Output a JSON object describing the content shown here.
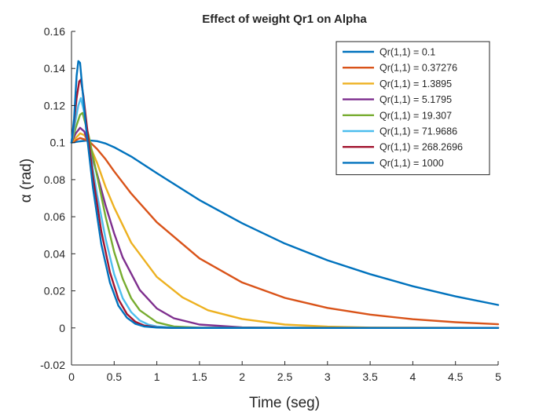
{
  "chart_data": {
    "type": "line",
    "title": "Effect of weight Qr1 on Alpha",
    "xlabel": "Time (seg)",
    "ylabel": "α (rad)",
    "xlim": [
      0,
      5
    ],
    "ylim": [
      -0.02,
      0.16
    ],
    "xticks": [
      0,
      0.5,
      1,
      1.5,
      2,
      2.5,
      3,
      3.5,
      4,
      4.5,
      5
    ],
    "xtick_labels": [
      "0",
      "0.5",
      "1",
      "1.5",
      "2",
      "2.5",
      "3",
      "3.5",
      "4",
      "4.5",
      "5"
    ],
    "yticks": [
      -0.02,
      0,
      0.02,
      0.04,
      0.06,
      0.08,
      0.1,
      0.12,
      0.14,
      0.16
    ],
    "ytick_labels": [
      "-0.02",
      "0",
      "0.02",
      "0.04",
      "0.06",
      "0.08",
      "0.1",
      "0.12",
      "0.14",
      "0.16"
    ],
    "grid": false,
    "legend_position": "top-right",
    "series": [
      {
        "name": "Qr(1,1) = 0.1",
        "color": "#0072BD",
        "x": [
          0,
          0.1,
          0.2,
          0.3,
          0.4,
          0.5,
          0.7,
          1.0,
          1.5,
          2.0,
          2.5,
          3.0,
          3.5,
          4.0,
          4.5,
          5.0
        ],
        "y": [
          0.1,
          0.1007,
          0.1012,
          0.1008,
          0.0995,
          0.0975,
          0.0925,
          0.0835,
          0.069,
          0.0565,
          0.0455,
          0.0365,
          0.029,
          0.0225,
          0.017,
          0.0124
        ]
      },
      {
        "name": "Qr(1,1) = 0.37276",
        "color": "#D95319",
        "x": [
          0,
          0.1,
          0.2,
          0.3,
          0.4,
          0.5,
          0.7,
          1.0,
          1.5,
          2.0,
          2.5,
          3.0,
          3.5,
          4.0,
          4.5,
          5.0
        ],
        "y": [
          0.1,
          0.1025,
          0.101,
          0.0965,
          0.091,
          0.0845,
          0.0725,
          0.057,
          0.0375,
          0.0245,
          0.0162,
          0.0108,
          0.0072,
          0.0047,
          0.0031,
          0.002
        ]
      },
      {
        "name": "Qr(1,1) = 1.3895",
        "color": "#EDB120",
        "x": [
          0,
          0.1,
          0.15,
          0.2,
          0.3,
          0.4,
          0.5,
          0.7,
          1.0,
          1.3,
          1.6,
          2.0,
          2.5,
          3.0,
          3.5,
          4.0,
          5.0
        ],
        "y": [
          0.1,
          0.105,
          0.104,
          0.1,
          0.089,
          0.076,
          0.065,
          0.046,
          0.0275,
          0.0165,
          0.0095,
          0.0048,
          0.0018,
          0.0007,
          0.0002,
          0.0001,
          0
        ]
      },
      {
        "name": "Qr(1,1) = 5.1795",
        "color": "#7E2F8E",
        "x": [
          0,
          0.05,
          0.1,
          0.15,
          0.2,
          0.3,
          0.4,
          0.5,
          0.6,
          0.8,
          1.0,
          1.2,
          1.5,
          2.0,
          2.5,
          5.0
        ],
        "y": [
          0.1,
          0.105,
          0.108,
          0.106,
          0.099,
          0.083,
          0.066,
          0.051,
          0.038,
          0.0205,
          0.0105,
          0.0052,
          0.0018,
          0.0003,
          0,
          0
        ]
      },
      {
        "name": "Qr(1,1) = 19.307",
        "color": "#77AC30",
        "x": [
          0,
          0.05,
          0.1,
          0.13,
          0.2,
          0.3,
          0.4,
          0.5,
          0.6,
          0.7,
          0.8,
          1.0,
          1.2,
          1.5,
          5.0
        ],
        "y": [
          0.1,
          0.108,
          0.115,
          0.116,
          0.104,
          0.082,
          0.06,
          0.041,
          0.0265,
          0.016,
          0.0095,
          0.003,
          0.0008,
          0.0001,
          0
        ]
      },
      {
        "name": "Qr(1,1) = 71.9686",
        "color": "#4DBEEE",
        "x": [
          0,
          0.04,
          0.08,
          0.11,
          0.15,
          0.2,
          0.3,
          0.4,
          0.5,
          0.6,
          0.7,
          0.8,
          0.9,
          1.0,
          1.2,
          5.0
        ],
        "y": [
          0.1,
          0.11,
          0.12,
          0.124,
          0.116,
          0.1,
          0.072,
          0.048,
          0.029,
          0.016,
          0.0085,
          0.004,
          0.0018,
          0.0008,
          0.0001,
          0
        ]
      },
      {
        "name": "Qr(1,1) = 268.2696",
        "color": "#A2142F",
        "x": [
          0,
          0.03,
          0.06,
          0.09,
          0.11,
          0.14,
          0.18,
          0.25,
          0.35,
          0.45,
          0.55,
          0.65,
          0.75,
          0.85,
          1.0,
          1.2,
          5.0
        ],
        "y": [
          0.1,
          0.111,
          0.124,
          0.133,
          0.134,
          0.125,
          0.109,
          0.082,
          0.052,
          0.03,
          0.0155,
          0.0075,
          0.0033,
          0.0013,
          0.0003,
          0,
          0
        ]
      },
      {
        "name": "Qr(1,1) = 1000",
        "color": "#0072BD",
        "x": [
          0,
          0.03,
          0.06,
          0.08,
          0.1,
          0.13,
          0.17,
          0.25,
          0.35,
          0.45,
          0.55,
          0.65,
          0.75,
          0.85,
          1.0,
          1.2,
          5.0
        ],
        "y": [
          0.1,
          0.113,
          0.136,
          0.144,
          0.143,
          0.128,
          0.108,
          0.076,
          0.045,
          0.0245,
          0.012,
          0.0055,
          0.0022,
          0.0008,
          0.0002,
          0,
          0
        ]
      }
    ]
  }
}
